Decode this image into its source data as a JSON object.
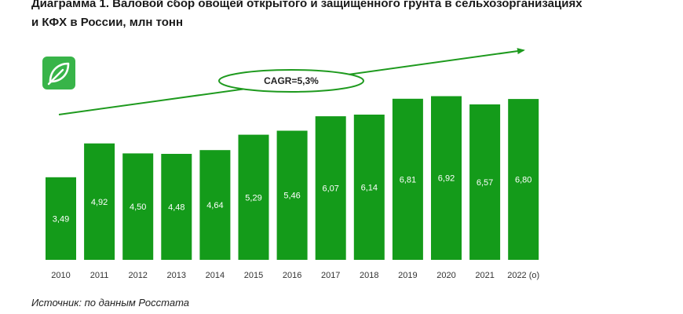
{
  "title_lines": [
    "Диаграмма 1. Валовой сбор овощей открытого и защищенного грунта в сельхозорганизациях",
    "и КФХ в России, млн тонн"
  ],
  "source": "Источник: по данным Росстата",
  "colors": {
    "bar": "#149b1a",
    "arrow": "#1e9a1e",
    "logo": "#38b449",
    "label": "#ffffff"
  },
  "icons": {
    "logo": "leaf-icon"
  },
  "chart_data": {
    "type": "bar",
    "categories": [
      "2010",
      "2011",
      "2012",
      "2013",
      "2014",
      "2015",
      "2016",
      "2017",
      "2018",
      "2019",
      "2020",
      "2021",
      "2022 (о)"
    ],
    "values": [
      3.49,
      4.92,
      4.5,
      4.48,
      4.64,
      5.29,
      5.46,
      6.07,
      6.14,
      6.81,
      6.92,
      6.57,
      6.8
    ],
    "value_labels": [
      "3,49",
      "4,92",
      "4,50",
      "4,48",
      "4,64",
      "5,29",
      "5,46",
      "6,07",
      "6,14",
      "6,81",
      "6,92",
      "6,57",
      "6,80"
    ],
    "annotation": "CAGR=5,3%",
    "ylim": [
      0,
      7.3
    ],
    "grid": false,
    "legend": "none"
  }
}
